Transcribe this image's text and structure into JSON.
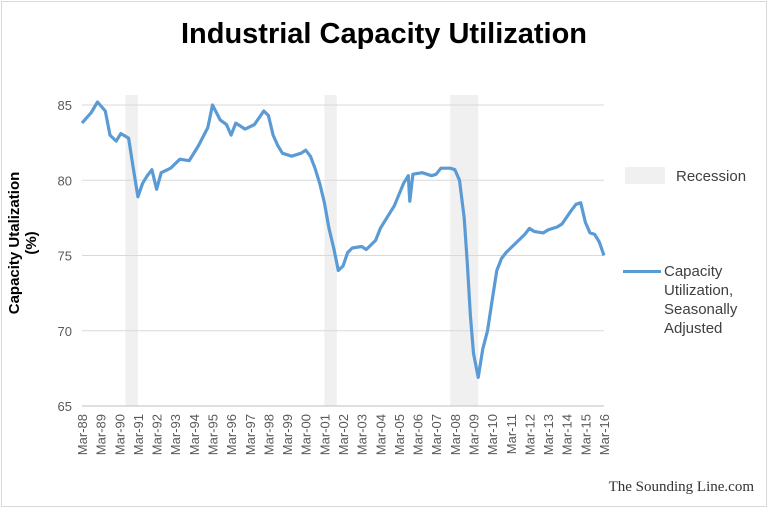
{
  "chart_data": {
    "type": "line",
    "title": "Industrial Capacity Utilization",
    "xlabel": "",
    "ylabel": "Capacity Utalization (%)",
    "ylim": [
      65,
      85
    ],
    "yticks": [
      65,
      70,
      75,
      80,
      85
    ],
    "xlim": [
      "1988-03",
      "2016-03"
    ],
    "xticks": [
      "Mar-88",
      "Mar-89",
      "Mar-90",
      "Mar-91",
      "Mar-92",
      "Mar-93",
      "Mar-94",
      "Mar-95",
      "Mar-96",
      "Mar-97",
      "Mar-98",
      "Mar-99",
      "Mar-00",
      "Mar-01",
      "Mar-02",
      "Mar-03",
      "Mar-04",
      "Mar-05",
      "Mar-06",
      "Mar-07",
      "Mar-08",
      "Mar-09",
      "Mar-10",
      "Mar-11",
      "Mar-12",
      "Mar-13",
      "Mar-14",
      "Mar-15",
      "Mar-16"
    ],
    "grid": true,
    "legend_placement": "right",
    "colors": {
      "line": "#5b9bd5",
      "recession": "#f0f0f0",
      "grid": "#d9d9d9"
    },
    "recessions": [
      {
        "start": "1990-07",
        "end": "1991-03"
      },
      {
        "start": "2001-03",
        "end": "2001-11"
      },
      {
        "start": "2007-12",
        "end": "2009-06"
      }
    ],
    "legend": [
      {
        "label": "Recession",
        "kind": "band"
      },
      {
        "label": "Capacity Utilization, Seasonally Adjusted",
        "lines": [
          "Capacity",
          "Utilization,",
          "Seasonally",
          "Adjusted"
        ],
        "kind": "line"
      }
    ],
    "series": [
      {
        "name": "Capacity Utilization, Seasonally Adjusted",
        "x": [
          "1988-03",
          "1988-09",
          "1989-01",
          "1989-06",
          "1989-09",
          "1990-01",
          "1990-04",
          "1990-09",
          "1990-12",
          "1991-03",
          "1991-06",
          "1991-09",
          "1991-12",
          "1992-03",
          "1992-06",
          "1992-12",
          "1993-06",
          "1993-12",
          "1994-06",
          "1994-12",
          "1995-01",
          "1995-03",
          "1995-08",
          "1995-12",
          "1996-03",
          "1996-06",
          "1996-12",
          "1997-06",
          "1997-12",
          "1998-03",
          "1998-06",
          "1998-09",
          "1998-12",
          "1999-06",
          "1999-12",
          "2000-03",
          "2000-06",
          "2000-09",
          "2000-12",
          "2001-03",
          "2001-06",
          "2001-09",
          "2001-12",
          "2002-03",
          "2002-06",
          "2002-09",
          "2003-03",
          "2003-06",
          "2003-12",
          "2004-03",
          "2004-06",
          "2004-12",
          "2005-06",
          "2005-09",
          "2005-10",
          "2005-12",
          "2006-06",
          "2006-12",
          "2007-03",
          "2007-06",
          "2007-12",
          "2008-03",
          "2008-06",
          "2008-09",
          "2008-11",
          "2009-01",
          "2009-03",
          "2009-06",
          "2009-09",
          "2009-12",
          "2010-03",
          "2010-06",
          "2010-09",
          "2010-12",
          "2011-06",
          "2011-12",
          "2012-03",
          "2012-06",
          "2012-12",
          "2013-03",
          "2013-09",
          "2013-12",
          "2014-06",
          "2014-09",
          "2014-12",
          "2015-03",
          "2015-06",
          "2015-09",
          "2015-12",
          "2016-03"
        ],
        "values": [
          83.8,
          84.5,
          85.2,
          84.6,
          83.0,
          82.6,
          83.1,
          82.8,
          80.8,
          78.9,
          79.8,
          80.3,
          80.7,
          79.4,
          80.5,
          80.8,
          81.4,
          81.3,
          82.3,
          83.5,
          84.0,
          85.0,
          84.0,
          83.7,
          83.0,
          83.8,
          83.4,
          83.7,
          84.6,
          84.3,
          83.0,
          82.3,
          81.8,
          81.6,
          81.8,
          82.0,
          81.6,
          80.8,
          79.8,
          78.5,
          76.8,
          75.5,
          74.0,
          74.3,
          75.2,
          75.5,
          75.6,
          75.4,
          76.0,
          76.8,
          77.3,
          78.3,
          79.8,
          80.3,
          78.6,
          80.4,
          80.5,
          80.3,
          80.4,
          80.8,
          80.8,
          80.7,
          80.0,
          77.5,
          74.5,
          71.0,
          68.5,
          66.9,
          68.8,
          70.0,
          72.0,
          74.0,
          74.8,
          75.2,
          75.8,
          76.4,
          76.8,
          76.6,
          76.5,
          76.7,
          76.9,
          77.1,
          78.0,
          78.4,
          78.5,
          77.2,
          76.5,
          76.4,
          75.9,
          75.0
        ]
      }
    ]
  },
  "credit": "The Sounding Line.com"
}
